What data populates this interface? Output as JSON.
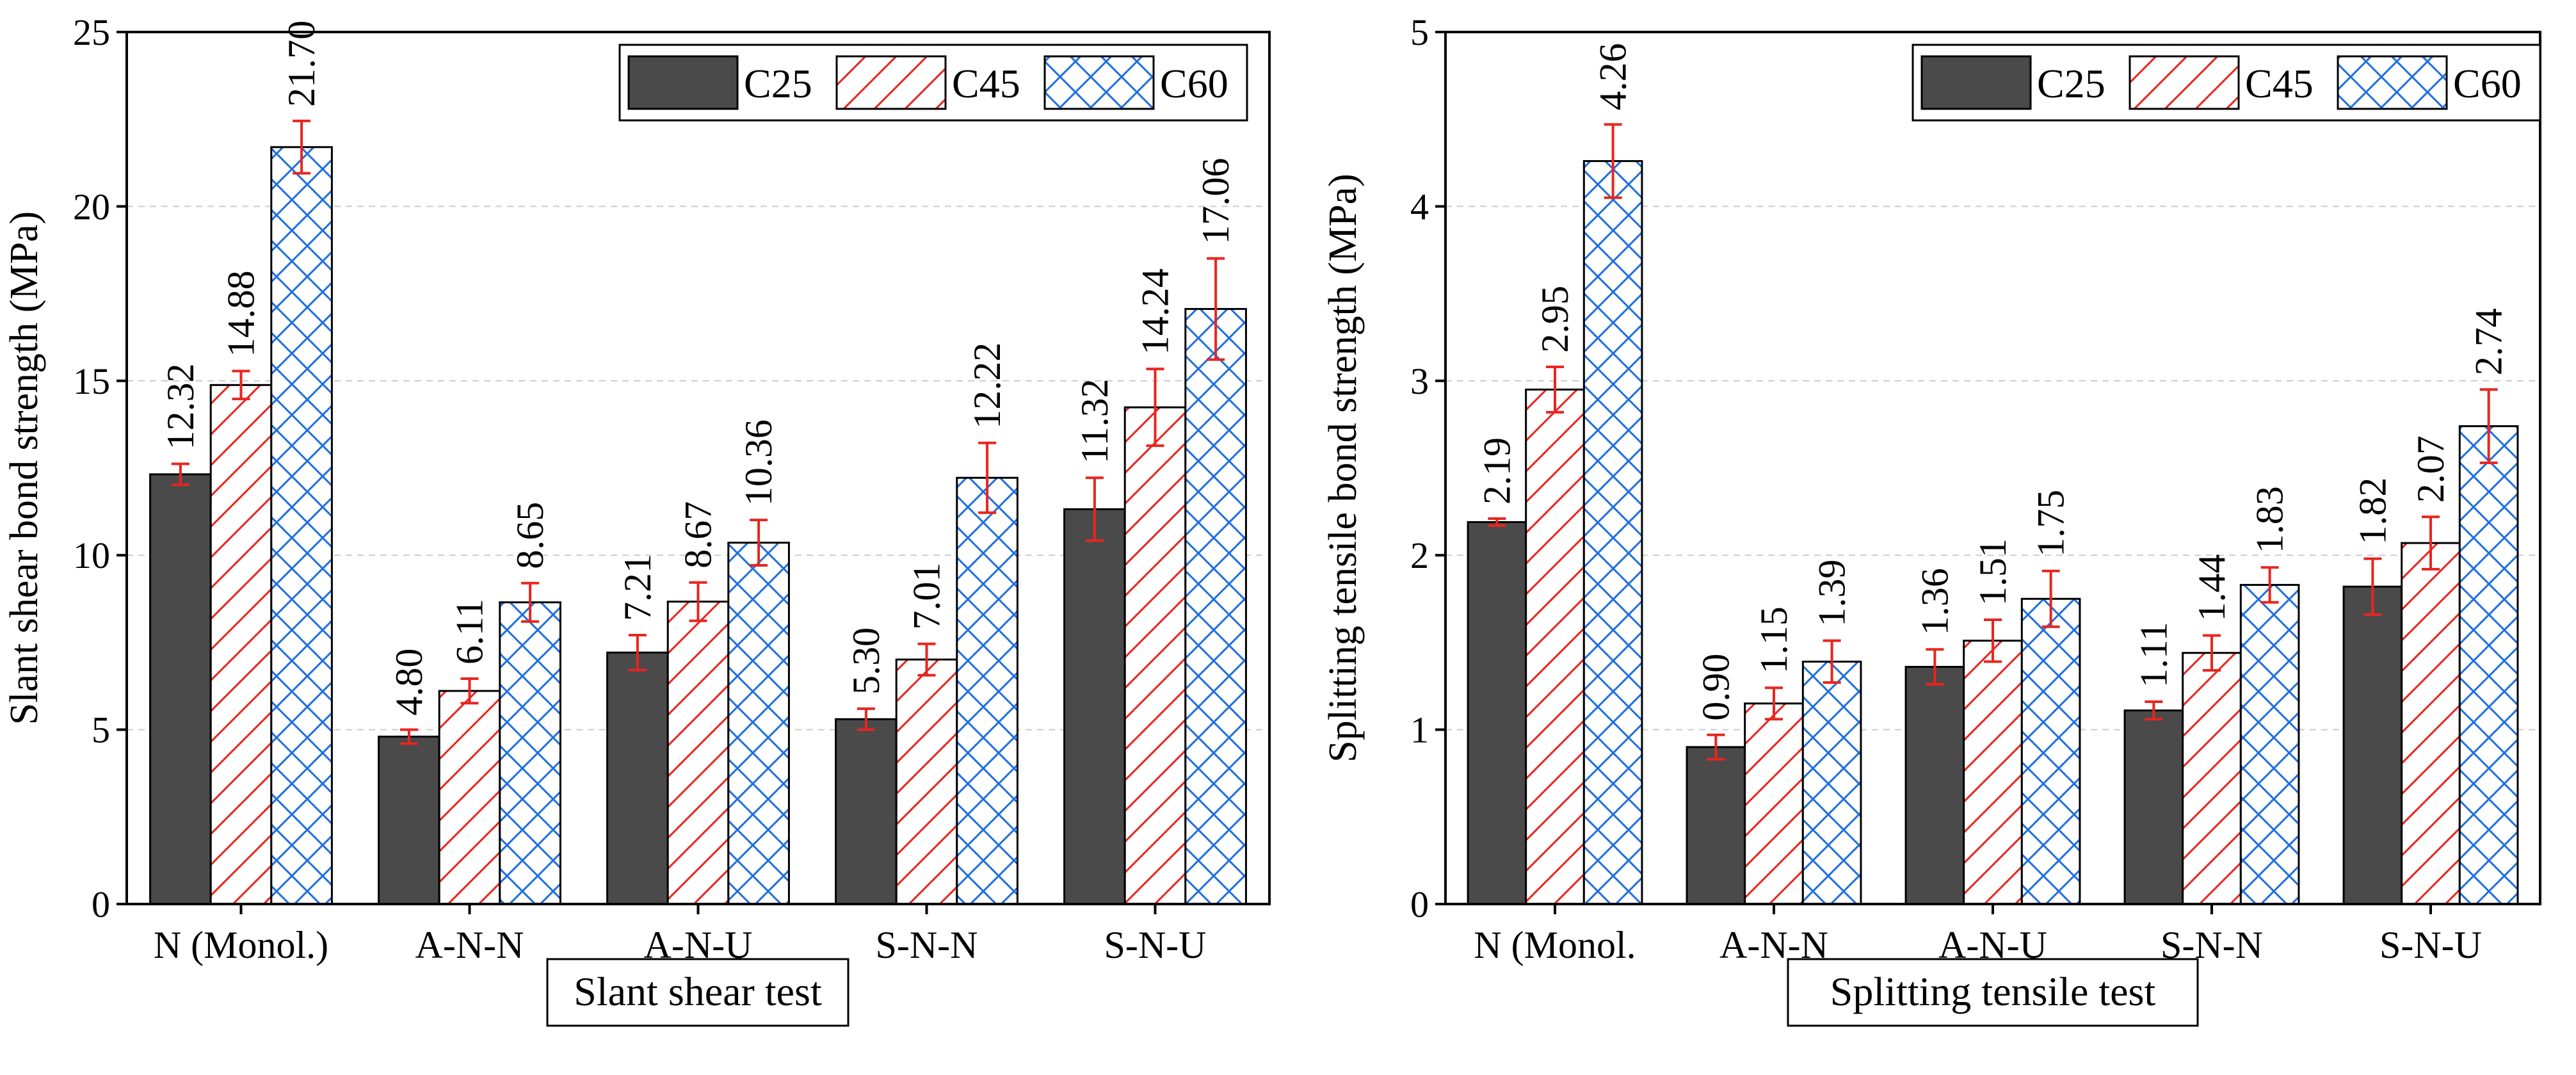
{
  "colors": {
    "C25": "#4a4a4a",
    "C45_stroke": "#e8251f",
    "C60_stroke": "#1f6fe0",
    "error_bar": "#e8251f",
    "grid": "#cccccc"
  },
  "chart_data": [
    {
      "type": "bar",
      "caption": "Slant shear test",
      "ylabel": "Slant shear bond strength (MPa)",
      "xlabel": "",
      "ylim": [
        0,
        25
      ],
      "yticks": [
        "0",
        "5",
        "10",
        "15",
        "20",
        "25"
      ],
      "grid": "horizontal dashed",
      "legend_position": "top-right",
      "categories": [
        "N (Monol.)",
        "A-N-N",
        "A-N-U",
        "S-N-N",
        "S-N-U"
      ],
      "series": [
        {
          "name": "C25",
          "values": [
            12.32,
            4.8,
            7.21,
            5.3,
            11.32
          ],
          "errors": [
            0.3,
            0.2,
            0.5,
            0.3,
            0.9
          ],
          "labels": [
            "12.32",
            "4.80",
            "7.21",
            "5.30",
            "11.32"
          ]
        },
        {
          "name": "C45",
          "values": [
            14.88,
            6.11,
            8.67,
            7.01,
            14.24
          ],
          "errors": [
            0.4,
            0.35,
            0.55,
            0.45,
            1.1
          ],
          "labels": [
            "14.88",
            "6.11",
            "8.67",
            "7.01",
            "14.24"
          ]
        },
        {
          "name": "C60",
          "values": [
            21.7,
            8.65,
            10.36,
            12.22,
            17.06
          ],
          "errors": [
            0.75,
            0.55,
            0.65,
            1.0,
            1.45
          ],
          "labels": [
            "21.70",
            "8.65",
            "10.36",
            "12.22",
            "17.06"
          ]
        }
      ]
    },
    {
      "type": "bar",
      "caption": "Splitting tensile test",
      "ylabel": "Splitting tensile bond strength (MPa)",
      "xlabel": "",
      "ylim": [
        0,
        5
      ],
      "yticks": [
        "0",
        "1",
        "2",
        "3",
        "4",
        "5"
      ],
      "grid": "horizontal dashed",
      "legend_position": "top-right",
      "categories": [
        "N (Monol.",
        "A-N-N",
        "A-N-U",
        "S-N-N",
        "S-N-U"
      ],
      "series": [
        {
          "name": "C25",
          "values": [
            2.19,
            0.9,
            1.36,
            1.11,
            1.82
          ],
          "errors": [
            0.02,
            0.07,
            0.1,
            0.05,
            0.16
          ],
          "labels": [
            "2.19",
            "0.90",
            "1.36",
            "1.11",
            "1.82"
          ]
        },
        {
          "name": "C45",
          "values": [
            2.95,
            1.15,
            1.51,
            1.44,
            2.07
          ],
          "errors": [
            0.13,
            0.09,
            0.12,
            0.1,
            0.15
          ],
          "labels": [
            "2.95",
            "1.15",
            "1.51",
            "1.44",
            "2.07"
          ]
        },
        {
          "name": "C60",
          "values": [
            4.26,
            1.39,
            1.75,
            1.83,
            2.74
          ],
          "errors": [
            0.21,
            0.12,
            0.16,
            0.1,
            0.21
          ],
          "labels": [
            "4.26",
            "1.39",
            "1.75",
            "1.83",
            "2.74"
          ]
        }
      ]
    }
  ]
}
